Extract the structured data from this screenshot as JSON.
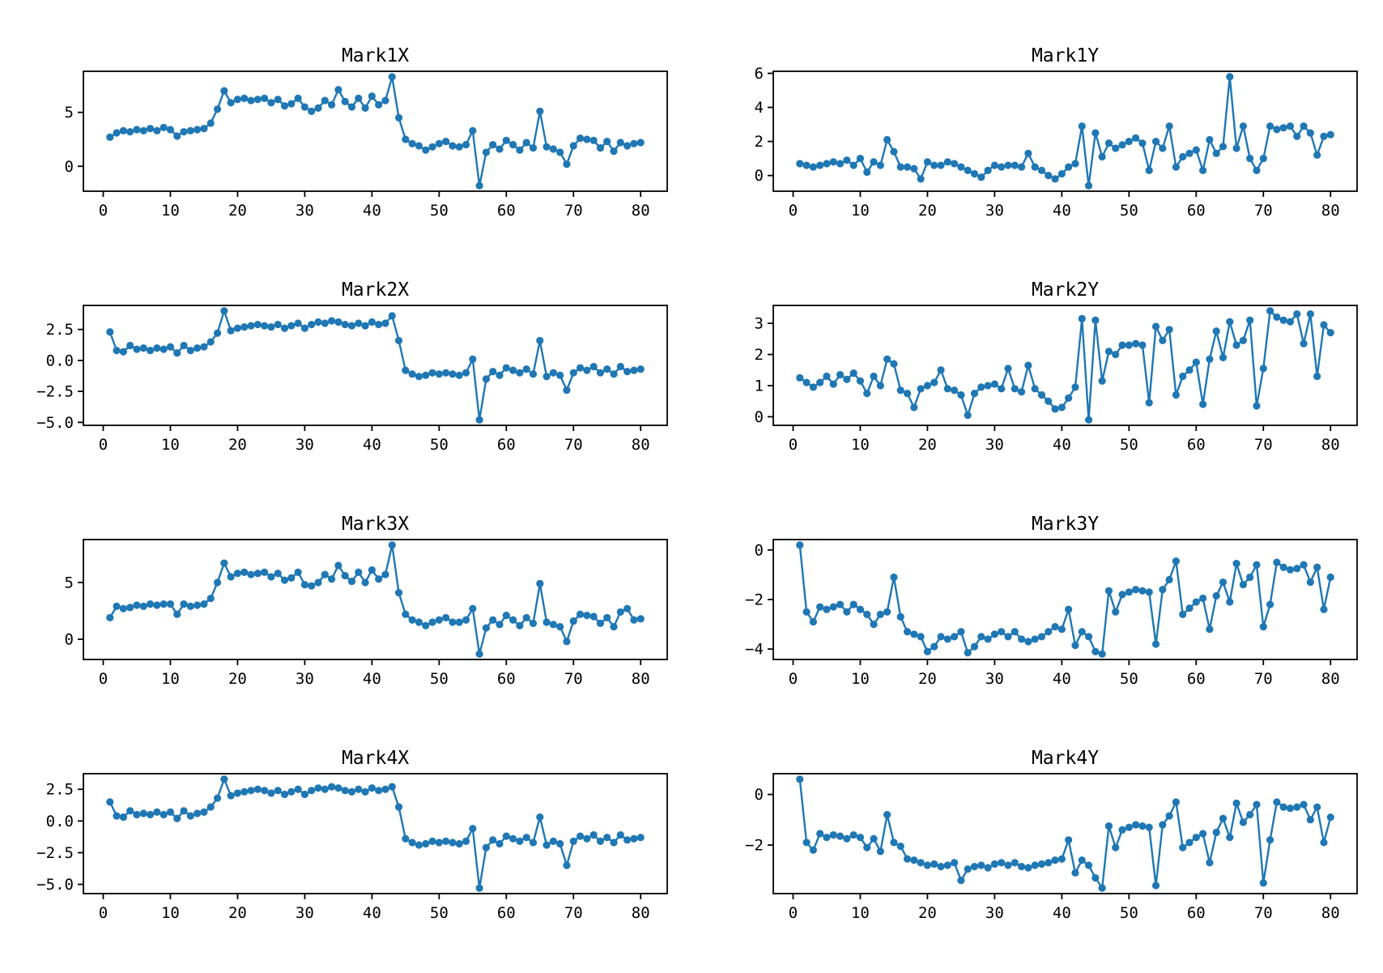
{
  "figure": {
    "background": "#ffffff",
    "series_color": "#1f77b4",
    "axes_color": "#000000",
    "grid": false,
    "legend": null
  },
  "chart_data": [
    {
      "type": "line",
      "title": "Mark1X",
      "marker": "circle",
      "color": "#1f77b4",
      "x_start": 1,
      "x_step": 1,
      "xlim": [
        -2.95,
        83.95
      ],
      "ylim": [
        -2.31,
        8.81
      ],
      "xticks": [
        0,
        10,
        20,
        30,
        40,
        50,
        60,
        70,
        80
      ],
      "yticks": [
        0,
        5
      ],
      "ytick_labels": [
        "0",
        "5"
      ],
      "values": [
        2.7,
        3.1,
        3.3,
        3.2,
        3.4,
        3.3,
        3.5,
        3.3,
        3.6,
        3.4,
        2.8,
        3.2,
        3.3,
        3.4,
        3.5,
        4.0,
        5.3,
        7.0,
        5.9,
        6.2,
        6.3,
        6.1,
        6.2,
        6.3,
        5.9,
        6.2,
        5.6,
        5.8,
        6.3,
        5.5,
        5.1,
        5.4,
        6.1,
        5.7,
        7.1,
        6.0,
        5.5,
        6.3,
        5.4,
        6.5,
        5.7,
        6.1,
        8.3,
        4.5,
        2.5,
        2.1,
        1.9,
        1.5,
        1.8,
        2.1,
        2.3,
        1.9,
        1.8,
        2.0,
        3.3,
        -1.8,
        1.3,
        2.0,
        1.6,
        2.4,
        2.0,
        1.5,
        2.2,
        1.7,
        5.1,
        1.8,
        1.6,
        1.3,
        0.2,
        1.9,
        2.6,
        2.5,
        2.4,
        1.7,
        2.3,
        1.4,
        2.2,
        1.9,
        2.1,
        2.2
      ]
    },
    {
      "type": "line",
      "title": "Mark1Y",
      "marker": "circle",
      "color": "#1f77b4",
      "x_start": 1,
      "x_step": 1,
      "xlim": [
        -2.95,
        83.95
      ],
      "ylim": [
        -0.92,
        6.12
      ],
      "xticks": [
        0,
        10,
        20,
        30,
        40,
        50,
        60,
        70,
        80
      ],
      "yticks": [
        0,
        2,
        4,
        6
      ],
      "ytick_labels": [
        "0",
        "2",
        "4",
        "6"
      ],
      "values": [
        0.7,
        0.6,
        0.5,
        0.6,
        0.7,
        0.8,
        0.7,
        0.9,
        0.6,
        1.0,
        0.2,
        0.8,
        0.6,
        2.1,
        1.4,
        0.5,
        0.5,
        0.4,
        -0.2,
        0.8,
        0.6,
        0.6,
        0.8,
        0.7,
        0.5,
        0.3,
        0.1,
        -0.1,
        0.3,
        0.6,
        0.5,
        0.6,
        0.6,
        0.5,
        1.3,
        0.5,
        0.3,
        0.0,
        -0.2,
        0.1,
        0.5,
        0.7,
        2.9,
        -0.6,
        2.5,
        1.1,
        1.9,
        1.6,
        1.8,
        2.0,
        2.2,
        1.9,
        0.3,
        2.0,
        1.6,
        2.9,
        0.5,
        1.1,
        1.3,
        1.5,
        0.3,
        2.1,
        1.3,
        1.7,
        5.8,
        1.6,
        2.9,
        1.0,
        0.3,
        1.0,
        2.9,
        2.7,
        2.8,
        2.9,
        2.3,
        2.9,
        2.5,
        1.2,
        2.3,
        2.4
      ]
    },
    {
      "type": "line",
      "title": "Mark2X",
      "marker": "circle",
      "color": "#1f77b4",
      "x_start": 1,
      "x_step": 1,
      "xlim": [
        -2.95,
        83.95
      ],
      "ylim": [
        -5.24,
        4.44
      ],
      "xticks": [
        0,
        10,
        20,
        30,
        40,
        50,
        60,
        70,
        80
      ],
      "yticks": [
        2.5,
        0.0,
        -2.5,
        -5.0
      ],
      "ytick_labels": [
        "2.5",
        "0.0",
        "−2.5",
        "−5.0"
      ],
      "values": [
        2.3,
        0.8,
        0.7,
        1.2,
        0.9,
        1.0,
        0.8,
        1.0,
        0.9,
        1.1,
        0.6,
        1.2,
        0.8,
        1.0,
        1.1,
        1.5,
        2.2,
        4.0,
        2.4,
        2.6,
        2.7,
        2.8,
        2.9,
        2.8,
        2.7,
        2.9,
        2.6,
        2.8,
        3.0,
        2.6,
        2.9,
        3.1,
        3.0,
        3.2,
        3.1,
        2.9,
        2.8,
        3.0,
        2.8,
        3.1,
        2.9,
        3.0,
        3.6,
        1.6,
        -0.8,
        -1.1,
        -1.3,
        -1.2,
        -1.0,
        -1.1,
        -1.0,
        -1.1,
        -1.2,
        -1.0,
        0.1,
        -4.8,
        -1.5,
        -0.9,
        -1.2,
        -0.6,
        -0.8,
        -1.0,
        -0.7,
        -1.1,
        1.6,
        -1.3,
        -1.0,
        -1.2,
        -2.4,
        -1.0,
        -0.6,
        -0.8,
        -0.5,
        -1.0,
        -0.7,
        -1.1,
        -0.5,
        -0.9,
        -0.8,
        -0.7
      ]
    },
    {
      "type": "line",
      "title": "Mark2Y",
      "marker": "circle",
      "color": "#1f77b4",
      "x_start": 1,
      "x_step": 1,
      "xlim": [
        -2.95,
        83.95
      ],
      "ylim": [
        -0.275,
        3.575
      ],
      "xticks": [
        0,
        10,
        20,
        30,
        40,
        50,
        60,
        70,
        80
      ],
      "yticks": [
        0,
        1,
        2,
        3
      ],
      "ytick_labels": [
        "0",
        "1",
        "2",
        "3"
      ],
      "values": [
        1.25,
        1.1,
        0.95,
        1.1,
        1.3,
        1.05,
        1.35,
        1.2,
        1.4,
        1.15,
        0.75,
        1.3,
        1.0,
        1.85,
        1.7,
        0.85,
        0.75,
        0.3,
        0.9,
        1.0,
        1.1,
        1.5,
        0.9,
        0.85,
        0.7,
        0.05,
        0.75,
        0.95,
        1.0,
        1.05,
        0.9,
        1.55,
        0.9,
        0.8,
        1.65,
        0.9,
        0.7,
        0.5,
        0.25,
        0.3,
        0.6,
        0.95,
        3.15,
        -0.1,
        3.1,
        1.15,
        2.1,
        2.0,
        2.3,
        2.3,
        2.35,
        2.3,
        0.45,
        2.9,
        2.45,
        2.8,
        0.7,
        1.3,
        1.5,
        1.75,
        0.4,
        1.85,
        2.75,
        1.9,
        3.05,
        2.3,
        2.45,
        3.1,
        0.35,
        1.55,
        3.4,
        3.2,
        3.1,
        3.05,
        3.3,
        2.35,
        3.3,
        1.3,
        2.95,
        2.7
      ]
    },
    {
      "type": "line",
      "title": "Mark3X",
      "marker": "circle",
      "color": "#1f77b4",
      "x_start": 1,
      "x_step": 1,
      "xlim": [
        -2.95,
        83.95
      ],
      "ylim": [
        -1.78,
        8.78
      ],
      "xticks": [
        0,
        10,
        20,
        30,
        40,
        50,
        60,
        70,
        80
      ],
      "yticks": [
        0,
        5
      ],
      "ytick_labels": [
        "0",
        "5"
      ],
      "values": [
        1.9,
        2.9,
        2.7,
        2.8,
        3.0,
        2.9,
        3.1,
        3.0,
        3.1,
        3.1,
        2.2,
        3.1,
        2.9,
        3.0,
        3.1,
        3.6,
        5.0,
        6.7,
        5.5,
        5.8,
        5.9,
        5.7,
        5.8,
        5.9,
        5.5,
        5.8,
        5.2,
        5.4,
        5.9,
        4.8,
        4.7,
        5.0,
        5.7,
        5.3,
        6.5,
        5.6,
        5.1,
        5.9,
        5.0,
        6.1,
        5.3,
        5.7,
        8.3,
        4.1,
        2.2,
        1.7,
        1.5,
        1.2,
        1.5,
        1.7,
        1.9,
        1.5,
        1.5,
        1.7,
        2.7,
        -1.3,
        1.0,
        1.7,
        1.3,
        2.1,
        1.7,
        1.2,
        1.9,
        1.4,
        4.9,
        1.5,
        1.3,
        1.1,
        -0.2,
        1.6,
        2.2,
        2.1,
        2.0,
        1.4,
        1.9,
        1.1,
        2.4,
        2.7,
        1.7,
        1.8
      ]
    },
    {
      "type": "line",
      "title": "Mark3Y",
      "marker": "circle",
      "color": "#1f77b4",
      "x_start": 1,
      "x_step": 1,
      "xlim": [
        -2.95,
        83.95
      ],
      "ylim": [
        -4.42,
        0.42
      ],
      "xticks": [
        0,
        10,
        20,
        30,
        40,
        50,
        60,
        70,
        80
      ],
      "yticks": [
        0,
        -2,
        -4
      ],
      "ytick_labels": [
        "0",
        "−2",
        "−4"
      ],
      "values": [
        0.2,
        -2.5,
        -2.9,
        -2.3,
        -2.4,
        -2.3,
        -2.2,
        -2.5,
        -2.2,
        -2.4,
        -2.6,
        -3.0,
        -2.6,
        -2.5,
        -1.1,
        -2.7,
        -3.3,
        -3.4,
        -3.5,
        -4.1,
        -3.9,
        -3.5,
        -3.6,
        -3.5,
        -3.3,
        -4.15,
        -3.9,
        -3.5,
        -3.6,
        -3.4,
        -3.3,
        -3.5,
        -3.3,
        -3.6,
        -3.7,
        -3.6,
        -3.5,
        -3.3,
        -3.1,
        -3.2,
        -2.4,
        -3.85,
        -3.3,
        -3.5,
        -4.1,
        -4.2,
        -1.65,
        -2.5,
        -1.8,
        -1.7,
        -1.6,
        -1.65,
        -1.7,
        -3.8,
        -1.6,
        -1.2,
        -0.45,
        -2.6,
        -2.35,
        -2.1,
        -1.95,
        -3.2,
        -1.85,
        -1.3,
        -2.1,
        -0.55,
        -1.4,
        -1.1,
        -0.6,
        -3.1,
        -2.2,
        -0.5,
        -0.7,
        -0.8,
        -0.75,
        -0.6,
        -1.3,
        -0.7,
        -2.4,
        -1.1
      ]
    },
    {
      "type": "line",
      "title": "Mark4X",
      "marker": "circle",
      "color": "#1f77b4",
      "x_start": 1,
      "x_step": 1,
      "xlim": [
        -2.95,
        83.95
      ],
      "ylim": [
        -5.73,
        3.73
      ],
      "xticks": [
        0,
        10,
        20,
        30,
        40,
        50,
        60,
        70,
        80
      ],
      "yticks": [
        2.5,
        0.0,
        -2.5,
        -5.0
      ],
      "ytick_labels": [
        "2.5",
        "0.0",
        "−2.5",
        "−5.0"
      ],
      "values": [
        1.5,
        0.4,
        0.3,
        0.8,
        0.5,
        0.6,
        0.5,
        0.7,
        0.5,
        0.7,
        0.2,
        0.8,
        0.4,
        0.6,
        0.7,
        1.1,
        1.8,
        3.3,
        2.0,
        2.2,
        2.3,
        2.4,
        2.5,
        2.4,
        2.2,
        2.4,
        2.1,
        2.3,
        2.5,
        2.1,
        2.4,
        2.6,
        2.5,
        2.7,
        2.6,
        2.4,
        2.3,
        2.5,
        2.3,
        2.6,
        2.4,
        2.5,
        2.7,
        1.1,
        -1.4,
        -1.7,
        -1.9,
        -1.8,
        -1.6,
        -1.7,
        -1.6,
        -1.7,
        -1.8,
        -1.6,
        -0.6,
        -5.3,
        -2.1,
        -1.5,
        -1.8,
        -1.2,
        -1.4,
        -1.6,
        -1.3,
        -1.7,
        0.3,
        -1.9,
        -1.6,
        -1.8,
        -3.5,
        -1.6,
        -1.2,
        -1.4,
        -1.1,
        -1.6,
        -1.3,
        -1.7,
        -1.1,
        -1.5,
        -1.4,
        -1.3
      ]
    },
    {
      "type": "line",
      "title": "Mark4Y",
      "marker": "circle",
      "color": "#1f77b4",
      "x_start": 1,
      "x_step": 1,
      "xlim": [
        -2.95,
        83.95
      ],
      "ylim": [
        -3.92,
        0.82
      ],
      "xticks": [
        0,
        10,
        20,
        30,
        40,
        50,
        60,
        70,
        80
      ],
      "yticks": [
        0,
        -2
      ],
      "ytick_labels": [
        "0",
        "−2"
      ],
      "values": [
        0.6,
        -1.9,
        -2.2,
        -1.55,
        -1.7,
        -1.6,
        -1.65,
        -1.75,
        -1.6,
        -1.7,
        -2.1,
        -1.75,
        -2.25,
        -0.8,
        -1.9,
        -2.05,
        -2.55,
        -2.6,
        -2.7,
        -2.8,
        -2.75,
        -2.85,
        -2.8,
        -2.7,
        -3.4,
        -2.95,
        -2.85,
        -2.8,
        -2.9,
        -2.75,
        -2.7,
        -2.8,
        -2.7,
        -2.85,
        -2.9,
        -2.8,
        -2.75,
        -2.7,
        -2.6,
        -2.55,
        -1.8,
        -3.1,
        -2.6,
        -2.8,
        -3.3,
        -3.7,
        -1.25,
        -2.1,
        -1.4,
        -1.3,
        -1.2,
        -1.25,
        -1.3,
        -3.6,
        -1.2,
        -0.85,
        -0.3,
        -2.1,
        -1.9,
        -1.7,
        -1.55,
        -2.7,
        -1.5,
        -0.95,
        -1.7,
        -0.35,
        -1.1,
        -0.8,
        -0.4,
        -3.5,
        -1.8,
        -0.3,
        -0.5,
        -0.55,
        -0.5,
        -0.4,
        -1.0,
        -0.5,
        -1.9,
        -0.9
      ]
    }
  ]
}
